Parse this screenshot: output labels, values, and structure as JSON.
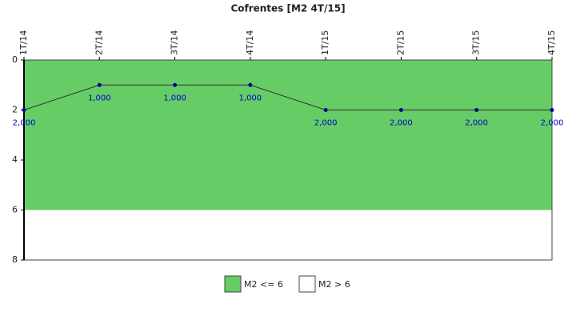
{
  "chart_data": {
    "type": "line",
    "title": "Cofrentes [M2 4T/15]",
    "categories": [
      "1T/14",
      "2T/14",
      "3T/14",
      "4T/14",
      "1T/15",
      "2T/15",
      "3T/15",
      "4T/15"
    ],
    "values": [
      2,
      1,
      1,
      1,
      2,
      2,
      2,
      2
    ],
    "value_labels": [
      "2,000",
      "1,000",
      "1,000",
      "1,000",
      "2,000",
      "2,000",
      "2,000",
      "2,000"
    ],
    "color": "#333333",
    "marker_color": "#000099",
    "ylim": [
      0,
      8
    ],
    "yticks": [
      0,
      2,
      4,
      6,
      8
    ],
    "y_reversed": true,
    "bands": [
      {
        "name": "M2 <= 6",
        "from": 0,
        "to": 6,
        "color": "#66cc66"
      },
      {
        "name": "M2 > 6",
        "from": 6,
        "to": 8,
        "color": "#ffffff"
      }
    ],
    "legend": "bottom"
  }
}
